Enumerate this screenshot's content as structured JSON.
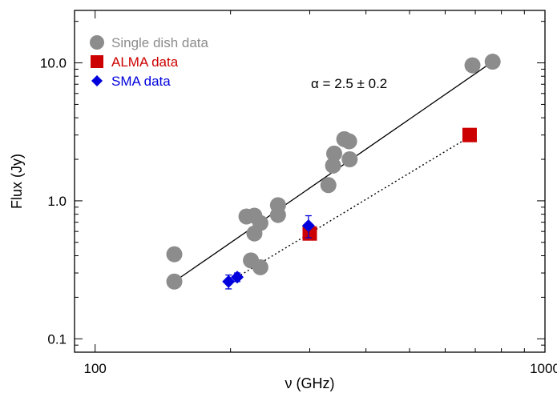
{
  "chart_data": {
    "type": "scatter",
    "xlabel": "ν (GHz)",
    "ylabel": "Flux (Jy)",
    "xscale": "log",
    "yscale": "log",
    "xlim": [
      90,
      1000
    ],
    "ylim": [
      0.08,
      24
    ],
    "x_ticks": [
      100,
      1000
    ],
    "x_tick_labels": [
      "100",
      "1000"
    ],
    "y_ticks": [
      0.1,
      1.0,
      10.0
    ],
    "y_tick_labels": [
      "0.1",
      "1.0",
      "10.0"
    ],
    "grid": false,
    "legend_position": "top-left",
    "annotation": "α = 2.5 ± 0.2",
    "series": [
      {
        "name": "Single dish data",
        "marker": "circle",
        "color": "#8c8c8c",
        "points": [
          [
            150,
            0.41
          ],
          [
            150,
            0.26
          ],
          [
            217,
            0.77
          ],
          [
            222,
            0.37
          ],
          [
            226,
            0.78
          ],
          [
            226,
            0.58
          ],
          [
            233,
            0.69
          ],
          [
            233,
            0.33
          ],
          [
            255,
            0.93
          ],
          [
            255,
            0.79
          ],
          [
            330,
            1.3
          ],
          [
            338,
            1.8
          ],
          [
            340,
            2.2
          ],
          [
            358,
            2.8
          ],
          [
            367,
            2.7
          ],
          [
            368,
            2.0
          ],
          [
            690,
            9.6
          ],
          [
            765,
            10.2
          ]
        ]
      },
      {
        "name": "ALMA data",
        "marker": "square",
        "color": "#cc0000",
        "points": [
          [
            300,
            0.58
          ],
          [
            680,
            3.0
          ]
        ]
      },
      {
        "name": "SMA data",
        "marker": "diamond",
        "color": "#0000dd",
        "points": [
          [
            198,
            0.26
          ],
          [
            207,
            0.28
          ],
          [
            298,
            0.66
          ]
        ],
        "errors": [
          0.03,
          0.02,
          0.12
        ]
      }
    ],
    "fits": [
      {
        "style": "solid",
        "color": "#000000",
        "from": [
          150,
          0.26
        ],
        "to": [
          765,
          10.2
        ]
      },
      {
        "style": "dotted",
        "color": "#000000",
        "from": [
          207,
          0.28
        ],
        "to": [
          690,
          3.0
        ]
      }
    ]
  }
}
